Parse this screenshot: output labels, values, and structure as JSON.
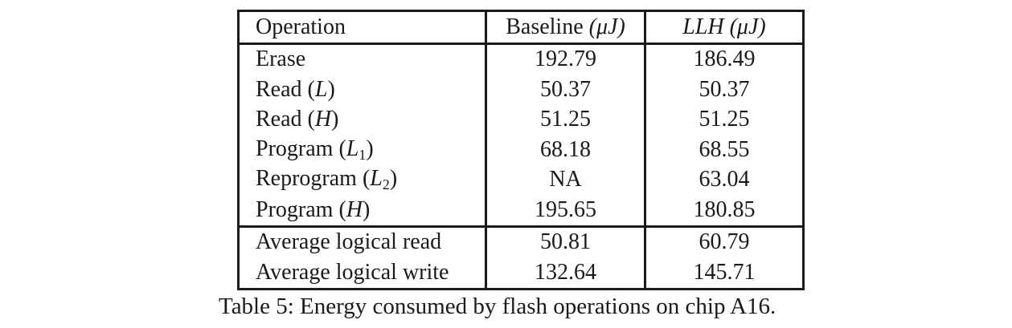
{
  "table": {
    "headers": {
      "operation": "Operation",
      "baseline_name": "Baseline",
      "baseline_unit": "(μJ)",
      "llh_name": "LLH",
      "llh_unit": "(μJ)"
    },
    "rows": [
      {
        "op": "Erase",
        "arg": "",
        "sub": "",
        "baseline": "192.79",
        "llh": "186.49"
      },
      {
        "op": "Read",
        "arg": "L",
        "sub": "",
        "baseline": "50.37",
        "llh": "50.37"
      },
      {
        "op": "Read",
        "arg": "H",
        "sub": "",
        "baseline": "51.25",
        "llh": "51.25"
      },
      {
        "op": "Program",
        "arg": "L",
        "sub": "1",
        "baseline": "68.18",
        "llh": "68.55"
      },
      {
        "op": "Reprogram",
        "arg": "L",
        "sub": "2",
        "baseline": "NA",
        "llh": "63.04"
      },
      {
        "op": "Program",
        "arg": "H",
        "sub": "",
        "baseline": "195.65",
        "llh": "180.85"
      },
      {
        "op": "Average logical read",
        "arg": "",
        "sub": "",
        "baseline": "50.81",
        "llh": "60.79"
      },
      {
        "op": "Average logical write",
        "arg": "",
        "sub": "",
        "baseline": "132.64",
        "llh": "145.71"
      }
    ]
  },
  "caption": {
    "label": "Table 5:",
    "text": "Energy consumed by flash operations on chip A16."
  }
}
